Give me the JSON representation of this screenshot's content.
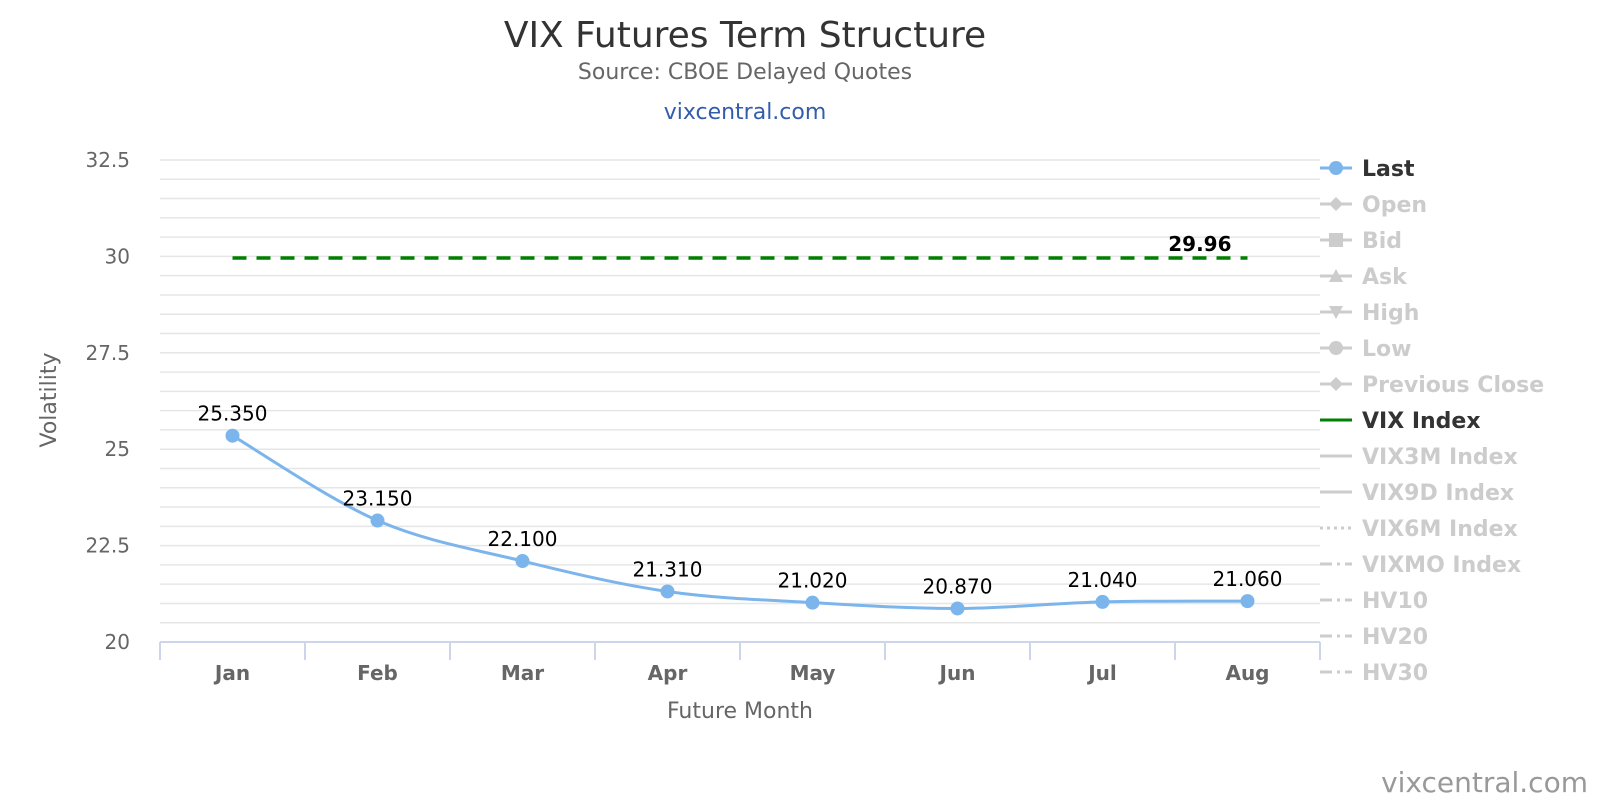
{
  "chart_data": {
    "type": "line",
    "title": "VIX Futures Term Structure",
    "subtitle": "Source: CBOE Delayed Quotes",
    "link": "vixcentral.com",
    "credit": "vixcentral.com",
    "xlabel": "Future Month",
    "ylabel": "Volatility",
    "ylim": [
      20,
      32.5
    ],
    "yticks": [
      "20",
      "22.5",
      "25",
      "27.5",
      "30",
      "32.5"
    ],
    "categories": [
      "Jan",
      "Feb",
      "Mar",
      "Apr",
      "May",
      "Jun",
      "Jul",
      "Aug"
    ],
    "grid": true,
    "legend_position": "right",
    "series": [
      {
        "name": "Last",
        "values": [
          25.35,
          23.15,
          22.1,
          21.31,
          21.02,
          20.87,
          21.04,
          21.06
        ],
        "labels": [
          "25.350",
          "23.150",
          "22.100",
          "21.310",
          "21.020",
          "20.870",
          "21.040",
          "21.060"
        ],
        "color": "#7cb5ec",
        "style": "solid-smooth-markers"
      },
      {
        "name": "VIX Index",
        "values": [
          29.96,
          29.96,
          29.96,
          29.96,
          29.96,
          29.96,
          29.96,
          29.96
        ],
        "end_label": "29.96",
        "color": "#008000",
        "style": "dashed"
      }
    ],
    "legend": [
      {
        "name": "Last",
        "active": true,
        "symbol": "circle",
        "line": "solid",
        "color": "#7cb5ec"
      },
      {
        "name": "Open",
        "active": false,
        "symbol": "diamond",
        "line": "solid"
      },
      {
        "name": "Bid",
        "active": false,
        "symbol": "square",
        "line": "solid"
      },
      {
        "name": "Ask",
        "active": false,
        "symbol": "triangle",
        "line": "solid"
      },
      {
        "name": "High",
        "active": false,
        "symbol": "triangle-down",
        "line": "solid"
      },
      {
        "name": "Low",
        "active": false,
        "symbol": "circle",
        "line": "solid"
      },
      {
        "name": "Previous Close",
        "active": false,
        "symbol": "diamond",
        "line": "solid"
      },
      {
        "name": "VIX Index",
        "active": true,
        "symbol": "none",
        "line": "solid",
        "color": "#008000"
      },
      {
        "name": "VIX3M Index",
        "active": false,
        "symbol": "none",
        "line": "solid"
      },
      {
        "name": "VIX9D Index",
        "active": false,
        "symbol": "none",
        "line": "solid"
      },
      {
        "name": "VIX6M Index",
        "active": false,
        "symbol": "none",
        "line": "dotted"
      },
      {
        "name": "VIXMO Index",
        "active": false,
        "symbol": "none",
        "line": "dashdot"
      },
      {
        "name": "HV10",
        "active": false,
        "symbol": "none",
        "line": "dashdot"
      },
      {
        "name": "HV20",
        "active": false,
        "symbol": "none",
        "line": "dashdot"
      },
      {
        "name": "HV30",
        "active": false,
        "symbol": "none",
        "line": "dashdot"
      }
    ],
    "colors": {
      "inactive": "#cccccc",
      "active_text": "#333333",
      "grid": "#e6e6e6",
      "axis": "#ccd6eb"
    }
  }
}
